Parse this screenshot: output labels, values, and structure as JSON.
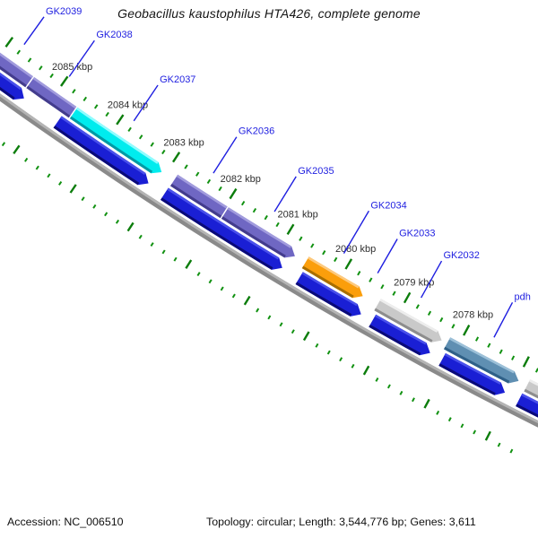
{
  "title": "Geobacillus kaustophilus HTA426, complete genome",
  "footer": {
    "accession": "Accession: NC_006510",
    "topology": "Topology: circular; Length: 3,544,776 bp; Genes: 3,611"
  },
  "chart_data": {
    "type": "genome-map-arc",
    "sequence": {
      "accession": "NC_006510",
      "topology": "circular",
      "length_bp": 3544776,
      "genes_count": 3611
    },
    "ruler": {
      "unit": "kbp",
      "minor_tick_kbp": 0.2,
      "major_tick_kbp": 1,
      "start_kbp": 2086.4,
      "end_kbp": 2076.6,
      "labeled_ticks": [
        2085,
        2084,
        2083,
        2082,
        2081,
        2080,
        2079,
        2078
      ],
      "label_suffix": " kbp"
    },
    "tracks": {
      "outer_genes": [
        {
          "id": "outer-gene-1",
          "color": "purple",
          "start_kbp": 2086.4,
          "end_kbp": 2085.42,
          "arrow": false
        },
        {
          "id": "outer-gene-2",
          "color": "purple",
          "start_kbp": 2085.4,
          "end_kbp": 2084.64,
          "arrow": false
        },
        {
          "id": "outer-gene-3",
          "color": "cyan",
          "start_kbp": 2084.62,
          "end_kbp": 2083.06,
          "arrow": true
        },
        {
          "id": "outer-gene-4",
          "color": "purple",
          "start_kbp": 2082.84,
          "end_kbp": 2081.97,
          "arrow": false
        },
        {
          "id": "outer-gene-5",
          "color": "purple",
          "start_kbp": 2081.95,
          "end_kbp": 2080.74,
          "arrow": true
        },
        {
          "id": "outer-gene-6",
          "color": "orange",
          "start_kbp": 2080.56,
          "end_kbp": 2079.58,
          "arrow": true
        },
        {
          "id": "outer-gene-7",
          "color": "gray",
          "start_kbp": 2079.33,
          "end_kbp": 2078.25,
          "arrow": true
        },
        {
          "id": "outer-gene-8",
          "color": "steelblue",
          "start_kbp": 2078.16,
          "end_kbp": 2076.97,
          "arrow": true
        },
        {
          "id": "outer-gene-9",
          "color": "gray",
          "start_kbp": 2076.83,
          "end_kbp": 2076.0,
          "arrow": false
        }
      ],
      "inner_genes": [
        {
          "id": "inner-gene-1",
          "color": "blue",
          "start_kbp": 2086.4,
          "end_kbp": 2085.34,
          "arrow": true
        },
        {
          "id": "inner-gene-2",
          "color": "blue",
          "start_kbp": 2084.74,
          "end_kbp": 2083.13,
          "arrow": true
        },
        {
          "id": "inner-gene-3",
          "color": "blue",
          "start_kbp": 2082.85,
          "end_kbp": 2080.81,
          "arrow": true
        },
        {
          "id": "inner-gene-4",
          "color": "blue",
          "start_kbp": 2080.52,
          "end_kbp": 2079.47,
          "arrow": true
        },
        {
          "id": "inner-gene-5",
          "color": "blue",
          "start_kbp": 2079.28,
          "end_kbp": 2078.31,
          "arrow": true
        },
        {
          "id": "inner-gene-6",
          "color": "blue",
          "start_kbp": 2078.11,
          "end_kbp": 2077.07,
          "arrow": true
        },
        {
          "id": "inner-gene-7",
          "color": "blue",
          "start_kbp": 2076.84,
          "end_kbp": 2076.0,
          "arrow": false
        }
      ]
    },
    "labels": [
      {
        "text": "GK2039",
        "kbp": 2085.8,
        "leader_len": 38
      },
      {
        "text": "GK2038",
        "kbp": 2084.98,
        "leader_len": 49
      },
      {
        "text": "GK2037",
        "kbp": 2083.82,
        "leader_len": 48
      },
      {
        "text": "GK2036",
        "kbp": 2082.41,
        "leader_len": 48
      },
      {
        "text": "GK2035",
        "kbp": 2081.34,
        "leader_len": 46
      },
      {
        "text": "GK2034",
        "kbp": 2080.14,
        "leader_len": 55
      },
      {
        "text": "GK2033",
        "kbp": 2079.56,
        "leader_len": 44
      },
      {
        "text": "GK2032",
        "kbp": 2078.82,
        "leader_len": 47
      },
      {
        "text": "pdh",
        "kbp": 2077.59,
        "leader_len": 44
      }
    ],
    "colors": {
      "purple": {
        "base": "#6f67c3",
        "light": "#a19bdd",
        "dark": "#433c8c"
      },
      "cyan": {
        "base": "#00ecee",
        "light": "#8ffcff",
        "dark": "#009aa4"
      },
      "orange": {
        "base": "#fb9e0b",
        "light": "#fdc97d",
        "dark": "#a86e00"
      },
      "gray": {
        "base": "#c9c9c9",
        "light": "#ededed",
        "dark": "#8d8d8d"
      },
      "steelblue": {
        "base": "#5f8fb2",
        "light": "#9cc0d8",
        "dark": "#2f6087"
      },
      "blue": {
        "base": "#1a1fd4",
        "light": "#4950ea",
        "dark": "#0a0a78"
      },
      "backbone_light": "#b4b4b4",
      "backbone_dark": "#8a8a8a",
      "tick_minor": "#119111",
      "tick_major": "#0c7d0c",
      "label_blue": "#1e1ee0",
      "ruler_text": "#2e2e2e"
    }
  }
}
